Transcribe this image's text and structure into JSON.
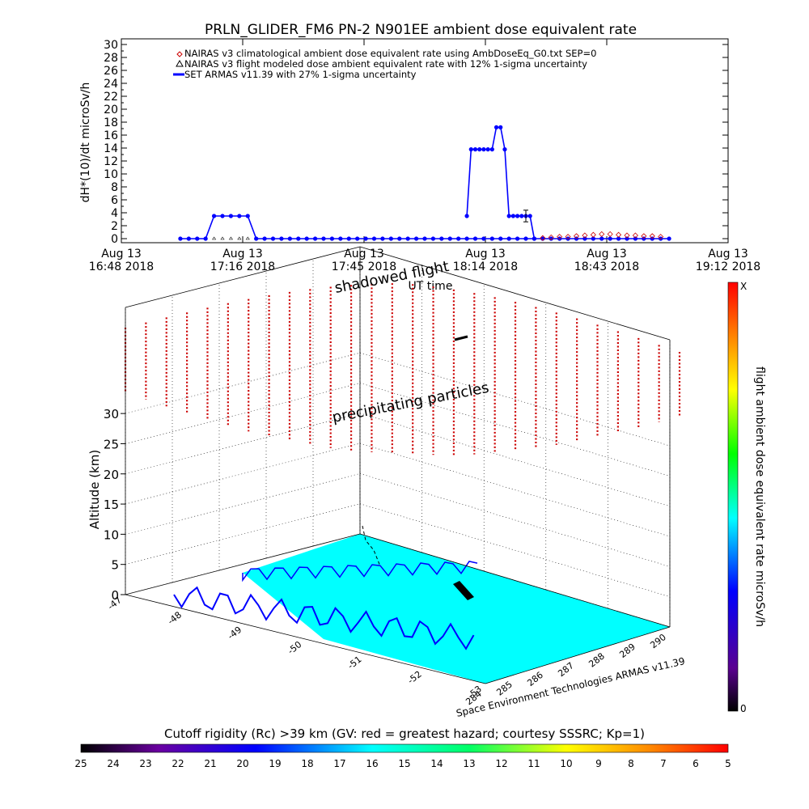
{
  "chart_data": [
    {
      "type": "line",
      "title": "PRLN_GLIDER_FM6 PN-2 N901EE ambient dose equivalent rate",
      "ylabel": "dH*(10)/dt microSv/h",
      "xlabel": "UT time",
      "ylim": [
        0,
        30
      ],
      "yticks": [
        "0",
        "2",
        "4",
        "6",
        "8",
        "10",
        "12",
        "14",
        "16",
        "18",
        "20",
        "22",
        "24",
        "26",
        "28",
        "30"
      ],
      "xticks": [
        {
          "date": "Aug 13",
          "time": "16:48 2018"
        },
        {
          "date": "Aug 13",
          "time": "17:16 2018"
        },
        {
          "date": "Aug 13",
          "time": "17:45 2018"
        },
        {
          "date": "Aug 13",
          "time": "18:14 2018"
        },
        {
          "date": "Aug 13",
          "time": "18:43 2018"
        },
        {
          "date": "Aug 13",
          "time": "19:12 2018"
        }
      ],
      "x_minutes_range": [
        0,
        144
      ],
      "legend": [
        "NAIRAS v3 climatological ambient dose equivalent rate using AmbDoseEq_G0.txt SEP=0",
        "NAIRAS v3 flight modeled dose ambient equivalent rate with 12% 1-sigma uncertainty",
        "SET ARMAS v11.39 with 27% 1-sigma uncertainty"
      ],
      "legend_position": "top-left",
      "series": [
        {
          "name": "SET ARMAS v11.39 with 27% 1-sigma uncertainty",
          "color": "#0000ff",
          "x": [
            14,
            16,
            18,
            20,
            22,
            24,
            26,
            28,
            30,
            32,
            34,
            36,
            38,
            40,
            42,
            44,
            46,
            48,
            50,
            52,
            54,
            56,
            58,
            60,
            62,
            64,
            66,
            68,
            70,
            72,
            74,
            76,
            78,
            80,
            82,
            84,
            86,
            88,
            90,
            92,
            94,
            96,
            98,
            100,
            102,
            104,
            106,
            108,
            110,
            112,
            114,
            116,
            118,
            120,
            122,
            124,
            126,
            128,
            130
          ],
          "y": [
            0,
            0,
            0,
            0,
            3.5,
            3.5,
            3.5,
            3.5,
            3.5,
            0,
            0,
            0,
            0,
            0,
            0,
            0,
            0,
            0,
            0,
            0,
            0,
            0,
            0,
            0,
            0,
            0,
            0,
            0,
            0,
            0,
            0,
            0,
            0,
            0,
            0,
            0,
            0,
            0,
            0,
            0,
            0,
            0,
            0,
            0,
            0,
            0,
            0,
            0,
            0,
            0,
            0,
            0,
            0,
            0,
            0,
            0,
            0,
            0,
            0
          ]
        },
        {
          "name": "SET ARMAS v11.39 with 27% 1-sigma uncertainty",
          "color": "#0000ff",
          "x": [
            82,
            83,
            84,
            85,
            86,
            87,
            88,
            89,
            90,
            91,
            92,
            93,
            94,
            95,
            96,
            97,
            98
          ],
          "y": [
            3.5,
            13.8,
            13.8,
            13.8,
            13.8,
            13.8,
            13.8,
            17.2,
            17.2,
            13.8,
            3.5,
            3.5,
            3.5,
            3.5,
            3.5,
            3.5,
            0
          ]
        },
        {
          "name": "NAIRAS v3 climatological ambient dose equivalent rate using AmbDoseEq_G0.txt SEP=0",
          "color": "#cc0000",
          "x": [
            100,
            102,
            104,
            106,
            108,
            110,
            112,
            114,
            116,
            118,
            120,
            122,
            124,
            126,
            128
          ],
          "y": [
            0.1,
            0.2,
            0.3,
            0.3,
            0.4,
            0.5,
            0.6,
            0.7,
            0.7,
            0.6,
            0.5,
            0.5,
            0.4,
            0.4,
            0.3
          ]
        }
      ],
      "error_bar": {
        "x": 96,
        "low": 2.6,
        "high": 4.4
      }
    },
    {
      "type": "scatter",
      "annotations": [
        "shadowed flight",
        "precipitating particles"
      ],
      "zlabel": "Altitude (km)",
      "zticks": [
        "0",
        "5",
        "10",
        "15",
        "20",
        "25",
        "30"
      ],
      "zlim": [
        0,
        35
      ],
      "lat_ticks": [
        "-47",
        "-48",
        "-49",
        "-50",
        "-51",
        "-52",
        "-53"
      ],
      "lon_ticks": [
        "284",
        "285",
        "286",
        "287",
        "288",
        "289",
        "290"
      ],
      "colorbar": {
        "label": "flight ambient dose equivalent rate microSv/h",
        "top_label": "X",
        "bottom_label": "0"
      },
      "credit": "Space Environment Technologies ARMAS v11.39",
      "surface_color": "#00ffff",
      "coast_color": "#0000ff",
      "precip_color": "#cc0000"
    },
    {
      "type": "heatmap",
      "title": "Cutoff rigidity (Rc) >39 km (GV: red = greatest hazard; courtesy SSSRC; Kp=1)",
      "ticks": [
        "25",
        "24",
        "23",
        "22",
        "21",
        "20",
        "19",
        "18",
        "17",
        "16",
        "15",
        "14",
        "13",
        "12",
        "11",
        "10",
        "9",
        "8",
        "7",
        "6",
        "5"
      ]
    }
  ]
}
